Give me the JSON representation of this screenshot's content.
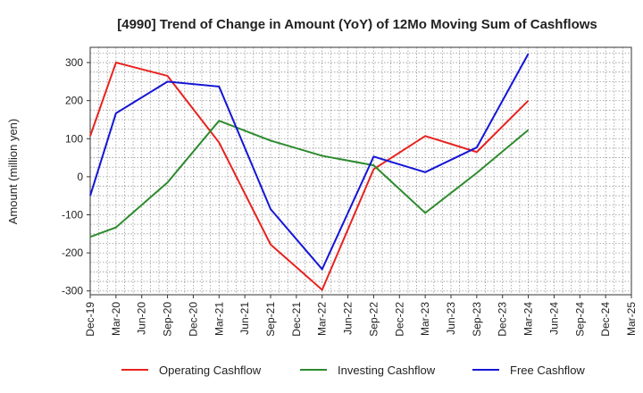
{
  "chart_data": {
    "type": "line",
    "title": "[4990]  Trend of Change in Amount (YoY) of 12Mo Moving Sum of Cashflows",
    "xlabel": "",
    "ylabel": "Amount (million yen)",
    "ylim": [
      -310,
      340
    ],
    "yticks": [
      300,
      200,
      100,
      0,
      -100,
      -200,
      -300
    ],
    "grid": true,
    "legend_position": "bottom",
    "x": [
      "Dec-19",
      "Mar-20",
      "Jun-20",
      "Sep-20",
      "Dec-20",
      "Mar-21",
      "Jun-21",
      "Sep-21",
      "Dec-21",
      "Mar-22",
      "Jun-22",
      "Sep-22",
      "Dec-22",
      "Mar-23",
      "Jun-23",
      "Sep-23",
      "Dec-23",
      "Mar-24",
      "Jun-24",
      "Sep-24",
      "Dec-24",
      "Mar-25"
    ],
    "series": [
      {
        "name": "Operating Cashflow",
        "color": "#e8221f",
        "values": [
          107,
          300,
          null,
          265,
          null,
          90,
          null,
          -178,
          null,
          -297,
          null,
          20,
          null,
          107,
          null,
          65,
          null,
          200,
          null,
          null,
          null,
          null
        ]
      },
      {
        "name": "Investing Cashflow",
        "color": "#2e8b2e",
        "values": [
          -158,
          -133,
          null,
          -15,
          null,
          147,
          null,
          95,
          null,
          55,
          null,
          30,
          null,
          -95,
          null,
          10,
          null,
          123,
          null,
          null,
          null,
          null
        ]
      },
      {
        "name": "Free Cashflow",
        "color": "#1515d6",
        "values": [
          -50,
          167,
          null,
          250,
          null,
          237,
          null,
          -85,
          null,
          -243,
          null,
          53,
          null,
          12,
          null,
          77,
          null,
          323,
          null,
          null,
          null,
          null
        ]
      }
    ]
  }
}
